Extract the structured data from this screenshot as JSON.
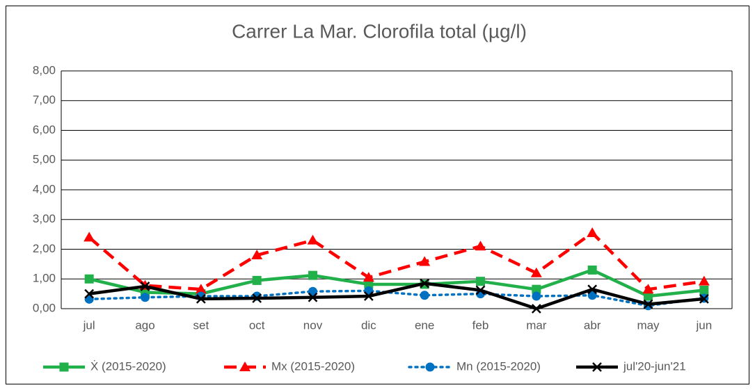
{
  "chart_data": {
    "type": "line",
    "title": "Carrer La Mar. Clorofila total (µg/l)",
    "categories": [
      "jul",
      "ago",
      "set",
      "oct",
      "nov",
      "dic",
      "ene",
      "feb",
      "mar",
      "abr",
      "may",
      "jun"
    ],
    "series": [
      {
        "name": "Ẋ (2015-2020)",
        "color": "#22b04b",
        "style": "solid",
        "marker": "square",
        "values": [
          1.0,
          0.55,
          0.5,
          0.95,
          1.12,
          0.82,
          0.82,
          0.92,
          0.65,
          1.3,
          0.42,
          0.62
        ]
      },
      {
        "name": "Mx (2015-2020)",
        "color": "#ff0000",
        "style": "dashed",
        "marker": "triangle",
        "values": [
          2.4,
          0.78,
          0.65,
          1.8,
          2.3,
          1.05,
          1.58,
          2.1,
          1.2,
          2.55,
          0.65,
          0.92
        ]
      },
      {
        "name": "Mn (2015-2020)",
        "color": "#0070c0",
        "style": "dotted",
        "marker": "circle",
        "values": [
          0.32,
          0.38,
          0.42,
          0.42,
          0.58,
          0.6,
          0.45,
          0.5,
          0.42,
          0.45,
          0.1,
          0.35
        ]
      },
      {
        "name": "jul'20-jun'21",
        "color": "#000000",
        "style": "solid",
        "marker": "x",
        "values": [
          0.5,
          0.75,
          0.33,
          0.35,
          0.38,
          0.42,
          0.85,
          0.62,
          0.0,
          0.65,
          0.15,
          0.33
        ]
      }
    ],
    "ylim": [
      0,
      8
    ],
    "yticks": [
      {
        "value": 0,
        "label": "0,00"
      },
      {
        "value": 1,
        "label": "1,00"
      },
      {
        "value": 2,
        "label": "2,00"
      },
      {
        "value": 3,
        "label": "3,00"
      },
      {
        "value": 4,
        "label": "4,00"
      },
      {
        "value": 5,
        "label": "5,00"
      },
      {
        "value": 6,
        "label": "6,00"
      },
      {
        "value": 7,
        "label": "7,00"
      },
      {
        "value": 8,
        "label": "8,00"
      }
    ],
    "grid": true,
    "legend": "bottom"
  }
}
